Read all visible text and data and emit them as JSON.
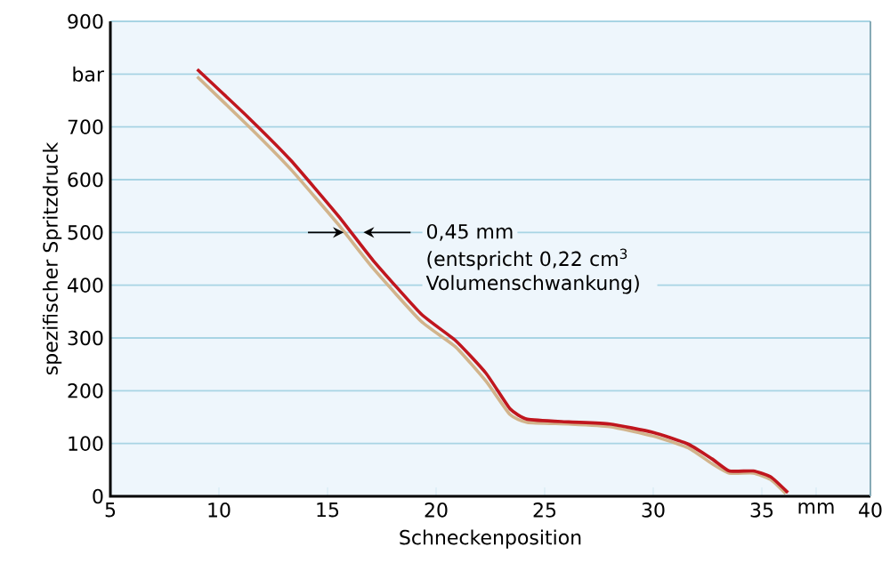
{
  "chart_data": {
    "type": "line",
    "xlabel": "Schneckenposition",
    "ylabel": "spezifischer Spritzdruck",
    "xlim": [
      5,
      40
    ],
    "ylim": [
      0,
      900
    ],
    "xticks": [
      5,
      10,
      15,
      20,
      25,
      30,
      35,
      {
        "value": 37.5,
        "label": "mm"
      },
      40
    ],
    "yticks": [
      0,
      100,
      200,
      300,
      400,
      500,
      600,
      700,
      {
        "value": 800,
        "label": "bar"
      },
      900
    ],
    "grid": "y",
    "marker": "none",
    "line_style": "solid",
    "series": [
      {
        "color": "#d2b48c",
        "x": [
          9.0,
          11.4,
          13.3,
          15.5,
          17.1,
          19.3,
          20.9,
          22.3,
          23.4,
          24.2,
          26.1,
          28.0,
          30.0,
          31.6,
          32.7,
          33.5,
          34.6,
          35.4,
          36.1
        ],
        "values": [
          795,
          700,
          620,
          515,
          432,
          332,
          283,
          218,
          155,
          140,
          137,
          132,
          114,
          92,
          62,
          44,
          44,
          32,
          5
        ]
      },
      {
        "color": "#c0161e",
        "x": [
          9.0,
          11.4,
          13.3,
          15.5,
          17.1,
          19.3,
          20.9,
          22.3,
          23.4,
          24.2,
          26.1,
          28.0,
          30.0,
          31.6,
          32.7,
          33.5,
          34.6,
          35.4,
          36.2
        ],
        "values": [
          809,
          716,
          637,
          531,
          447,
          346,
          295,
          233,
          166,
          146,
          141,
          137,
          121,
          99,
          71,
          48,
          48,
          37,
          7
        ]
      }
    ],
    "annotations": [
      "0,45 mm",
      "(entspricht 0,22 cm$^{3}$ Volumenschwankung)"
    ]
  }
}
